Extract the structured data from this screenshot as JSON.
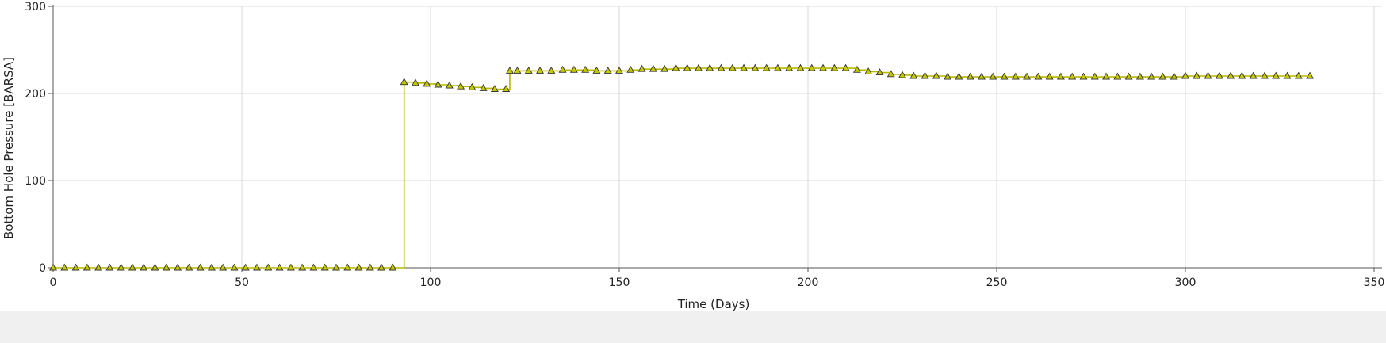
{
  "chart_data": {
    "type": "line",
    "title": "",
    "xlabel": "Time (Days)",
    "ylabel": "Bottom Hole Pressure [BARSA]",
    "xlim": [
      0,
      350
    ],
    "ylim": [
      0,
      300
    ],
    "xticks": [
      0,
      50,
      100,
      150,
      200,
      250,
      300,
      350
    ],
    "yticks": [
      0,
      100,
      200,
      300
    ],
    "grid": true,
    "step": true,
    "colors": {
      "line": "#b8b800",
      "marker_fill": "#c8c800",
      "marker_edge": "#333333",
      "grid": "#d9d9d9",
      "axis": "#555555"
    },
    "series": [
      {
        "marker": "triangle",
        "x": [
          0,
          3,
          6,
          9,
          12,
          15,
          18,
          21,
          24,
          27,
          30,
          33,
          36,
          39,
          42,
          45,
          48,
          51,
          54,
          57,
          60,
          63,
          66,
          69,
          72,
          75,
          78,
          81,
          84,
          87,
          90,
          93,
          96,
          99,
          102,
          105,
          108,
          111,
          114,
          117,
          120,
          121,
          123,
          126,
          129,
          132,
          135,
          138,
          141,
          144,
          147,
          150,
          153,
          156,
          159,
          162,
          165,
          168,
          171,
          174,
          177,
          180,
          183,
          186,
          189,
          192,
          195,
          198,
          201,
          204,
          207,
          210,
          213,
          216,
          219,
          222,
          225,
          228,
          231,
          234,
          237,
          240,
          243,
          246,
          249,
          252,
          255,
          258,
          261,
          264,
          267,
          270,
          273,
          276,
          279,
          282,
          285,
          288,
          291,
          294,
          297,
          300,
          303,
          306,
          309,
          312,
          315,
          318,
          321,
          324,
          327,
          330,
          333
        ],
        "y": [
          0,
          0,
          0,
          0,
          0,
          0,
          0,
          0,
          0,
          0,
          0,
          0,
          0,
          0,
          0,
          0,
          0,
          0,
          0,
          0,
          0,
          0,
          0,
          0,
          0,
          0,
          0,
          0,
          0,
          0,
          0,
          213,
          212,
          211,
          210,
          209,
          208,
          207,
          206,
          205,
          205,
          226,
          226,
          226,
          226,
          226,
          227,
          227,
          227,
          226,
          226,
          226,
          227,
          228,
          228,
          228,
          229,
          229,
          229,
          229,
          229,
          229,
          229,
          229,
          229,
          229,
          229,
          229,
          229,
          229,
          229,
          229,
          227,
          225,
          224,
          222,
          221,
          220,
          220,
          220,
          219,
          219,
          219,
          219,
          219,
          219,
          219,
          219,
          219,
          219,
          219,
          219,
          219,
          219,
          219,
          219,
          219,
          219,
          219,
          219,
          219,
          220,
          220,
          220,
          220,
          220,
          220,
          220,
          220,
          220,
          220,
          220,
          220
        ]
      }
    ]
  }
}
